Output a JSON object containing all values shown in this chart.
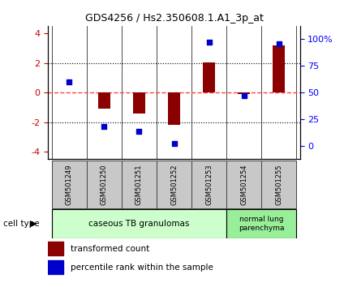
{
  "title": "GDS4256 / Hs2.350608.1.A1_3p_at",
  "samples": [
    "GSM501249",
    "GSM501250",
    "GSM501251",
    "GSM501252",
    "GSM501253",
    "GSM501254",
    "GSM501255"
  ],
  "transformed_counts": [
    0.0,
    -1.1,
    -1.4,
    -2.2,
    2.05,
    -0.1,
    3.2
  ],
  "percentile_ranks": [
    60,
    18,
    14,
    2,
    97,
    47,
    96
  ],
  "ylim_left": [
    -4.5,
    4.5
  ],
  "ylim_right": [
    -12.5,
    112.5
  ],
  "yticks_left": [
    -4,
    -2,
    0,
    2,
    4
  ],
  "yticks_right": [
    0,
    25,
    50,
    75,
    100
  ],
  "ytick_labels_right": [
    "0",
    "25",
    "50",
    "75",
    "100%"
  ],
  "bar_color": "#8B0000",
  "dot_color": "#0000CC",
  "zero_line_color": "#FF4444",
  "dotted_line_color": "#000000",
  "group1_label": "caseous TB granulomas",
  "group2_label": "normal lung\nparenchyma",
  "group1_color": "#CCFFCC",
  "group2_color": "#99EE99",
  "cell_type_label": "cell type",
  "legend_bar_label": "transformed count",
  "legend_dot_label": "percentile rank within the sample",
  "group1_indices": [
    0,
    1,
    2,
    3,
    4
  ],
  "group2_indices": [
    5,
    6
  ],
  "sample_box_color": "#C8C8C8",
  "bar_width": 0.35
}
